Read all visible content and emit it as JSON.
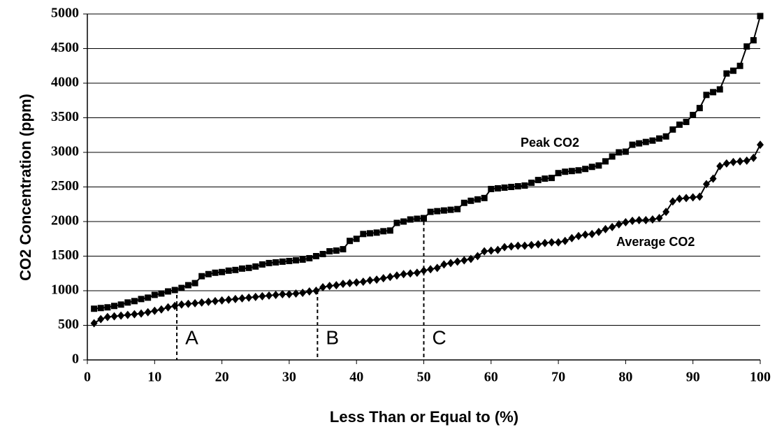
{
  "chart_data": {
    "type": "line",
    "xlabel": "Less Than or Equal to (%)",
    "ylabel": "CO2 Concentration (ppm)",
    "x": [
      1,
      2,
      3,
      4,
      5,
      6,
      7,
      8,
      9,
      10,
      11,
      12,
      13,
      14,
      15,
      16,
      17,
      18,
      19,
      20,
      21,
      22,
      23,
      24,
      25,
      26,
      27,
      28,
      29,
      30,
      31,
      32,
      33,
      34,
      35,
      36,
      37,
      38,
      39,
      40,
      41,
      42,
      43,
      44,
      45,
      46,
      47,
      48,
      49,
      50,
      51,
      52,
      53,
      54,
      55,
      56,
      57,
      58,
      59,
      60,
      61,
      62,
      63,
      64,
      65,
      66,
      67,
      68,
      69,
      70,
      71,
      72,
      73,
      74,
      75,
      76,
      77,
      78,
      79,
      80,
      81,
      82,
      83,
      84,
      85,
      86,
      87,
      88,
      89,
      90,
      91,
      92,
      93,
      94,
      95,
      96,
      97,
      98,
      99,
      100
    ],
    "series": [
      {
        "name": "Peak CO2",
        "color": "#000000",
        "marker": "square",
        "values": [
          740,
          750,
          760,
          780,
          800,
          830,
          850,
          880,
          900,
          940,
          960,
          990,
          1010,
          1040,
          1080,
          1110,
          1210,
          1240,
          1260,
          1270,
          1290,
          1300,
          1320,
          1330,
          1350,
          1380,
          1400,
          1410,
          1420,
          1430,
          1440,
          1450,
          1470,
          1500,
          1530,
          1570,
          1580,
          1600,
          1720,
          1750,
          1820,
          1830,
          1840,
          1860,
          1870,
          1980,
          2000,
          2030,
          2040,
          2050,
          2140,
          2150,
          2160,
          2170,
          2180,
          2270,
          2300,
          2320,
          2340,
          2470,
          2480,
          2490,
          2500,
          2510,
          2520,
          2560,
          2600,
          2620,
          2630,
          2700,
          2720,
          2730,
          2740,
          2760,
          2790,
          2810,
          2870,
          2940,
          3000,
          3010,
          3110,
          3130,
          3150,
          3170,
          3200,
          3230,
          3330,
          3400,
          3440,
          3540,
          3640,
          3830,
          3870,
          3910,
          4140,
          4180,
          4250,
          4530,
          4620,
          4970
        ]
      },
      {
        "name": "Average CO2",
        "color": "#000000",
        "marker": "diamond",
        "values": [
          530,
          590,
          620,
          630,
          640,
          650,
          660,
          670,
          690,
          710,
          730,
          760,
          780,
          800,
          810,
          820,
          830,
          840,
          850,
          860,
          870,
          880,
          890,
          900,
          910,
          920,
          930,
          940,
          950,
          950,
          960,
          970,
          990,
          1000,
          1050,
          1070,
          1080,
          1100,
          1110,
          1120,
          1130,
          1150,
          1160,
          1180,
          1200,
          1220,
          1240,
          1250,
          1260,
          1290,
          1310,
          1330,
          1380,
          1400,
          1420,
          1440,
          1460,
          1500,
          1570,
          1580,
          1590,
          1630,
          1640,
          1650,
          1650,
          1660,
          1670,
          1690,
          1700,
          1700,
          1720,
          1760,
          1790,
          1810,
          1820,
          1850,
          1890,
          1920,
          1960,
          1990,
          2010,
          2020,
          2020,
          2030,
          2050,
          2140,
          2290,
          2330,
          2340,
          2350,
          2360,
          2540,
          2620,
          2800,
          2840,
          2860,
          2870,
          2880,
          2920,
          3110
        ]
      }
    ],
    "annotations": [
      {
        "label": "A",
        "x": 13.3,
        "y": 1030
      },
      {
        "label": "B",
        "x": 34.2,
        "y": 1000
      },
      {
        "label": "C",
        "x": 50,
        "y": 2090
      }
    ],
    "xlim": [
      0,
      100
    ],
    "xticks": [
      0,
      10,
      20,
      30,
      40,
      50,
      60,
      70,
      80,
      90,
      100
    ],
    "ylim": [
      0,
      5000
    ],
    "yticks": [
      0,
      500,
      1000,
      1500,
      2000,
      2500,
      3000,
      3500,
      4000,
      4500,
      5000
    ],
    "grid": true
  }
}
